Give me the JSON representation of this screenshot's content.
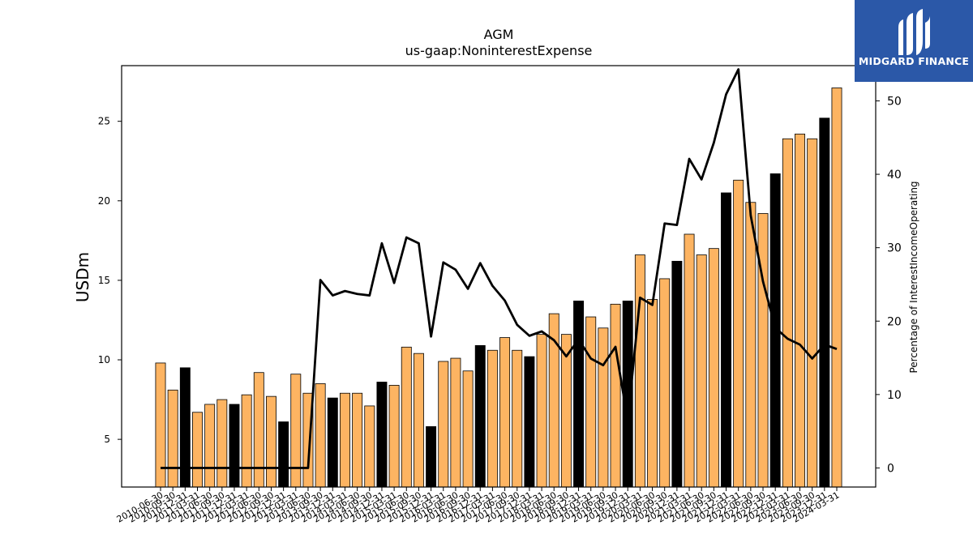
{
  "brand": {
    "name": "MIDGARD FINANCE",
    "bg_color": "#2b58a8"
  },
  "chart_data": {
    "type": "bar",
    "title": "AGM",
    "subtitle": "us-gaap:NoninterestExpense",
    "ylabel": "USDm",
    "y2label": "Percentage of InterestIncomeOperating",
    "ylim": [
      2.0,
      28.5
    ],
    "y2lim": [
      -2.6,
      54.8
    ],
    "yticks": [
      5,
      10,
      15,
      20,
      25
    ],
    "y2ticks": [
      0,
      10,
      20,
      30,
      40,
      50
    ],
    "bar_color": "#fdb462",
    "highlight_color": "#000000",
    "line_color": "#000000",
    "categories": [
      "2010-06-30",
      "2010-09-30",
      "2010-12-31",
      "2011-03-31",
      "2011-06-30",
      "2011-09-30",
      "2011-12-31",
      "2012-03-31",
      "2012-06-30",
      "2012-09-30",
      "2012-12-31",
      "2013-03-31",
      "2013-06-30",
      "2013-09-30",
      "2013-12-31",
      "2014-03-31",
      "2014-06-30",
      "2014-09-30",
      "2014-12-31",
      "2015-03-31",
      "2015-06-30",
      "2015-09-30",
      "2015-12-31",
      "2016-03-31",
      "2016-06-30",
      "2016-09-30",
      "2016-12-31",
      "2017-03-31",
      "2017-06-30",
      "2017-09-30",
      "2017-12-31",
      "2018-03-31",
      "2018-06-30",
      "2018-09-30",
      "2018-12-31",
      "2019-03-31",
      "2019-06-30",
      "2019-09-30",
      "2019-12-31",
      "2020-03-31",
      "2020-06-30",
      "2020-09-30",
      "2020-12-31",
      "2021-03-31",
      "2021-06-30",
      "2021-09-30",
      "2021-12-31",
      "2022-03-31",
      "2022-06-30",
      "2022-09-30",
      "2022-12-31",
      "2023-03-31",
      "2023-06-30",
      "2023-09-30",
      "2023-12-31",
      "2024-03-31"
    ],
    "highlight": [
      false,
      false,
      true,
      false,
      false,
      false,
      true,
      false,
      false,
      false,
      true,
      false,
      false,
      false,
      true,
      false,
      false,
      false,
      true,
      false,
      false,
      false,
      true,
      false,
      false,
      false,
      true,
      false,
      false,
      false,
      true,
      false,
      false,
      false,
      true,
      false,
      false,
      false,
      true,
      false,
      false,
      false,
      true,
      false,
      false,
      false,
      true,
      false,
      false,
      false,
      true,
      false,
      false,
      false,
      true,
      false
    ],
    "series": [
      {
        "name": "NoninterestExpense",
        "axis": "left",
        "values": [
          9.8,
          8.1,
          9.5,
          6.7,
          7.2,
          7.5,
          7.2,
          7.8,
          9.2,
          7.7,
          6.1,
          9.1,
          7.9,
          8.5,
          7.6,
          7.9,
          7.9,
          7.1,
          8.6,
          8.4,
          10.8,
          10.4,
          5.8,
          9.9,
          10.1,
          9.3,
          10.9,
          10.6,
          11.4,
          10.6,
          10.2,
          11.6,
          12.9,
          11.6,
          13.7,
          12.7,
          12.0,
          13.5,
          13.7,
          16.6,
          13.8,
          15.1,
          16.2,
          17.9,
          16.6,
          17.0,
          20.5,
          21.3,
          19.9,
          19.2,
          21.7,
          23.9,
          24.2,
          23.9,
          25.2,
          27.1
        ]
      },
      {
        "name": "Percentage of InterestIncomeOperating",
        "axis": "right",
        "values": [
          0,
          0,
          0,
          0,
          0,
          0,
          0,
          0,
          0,
          0,
          0,
          0,
          0,
          25.6,
          23.5,
          24.1,
          23.7,
          23.5,
          30.6,
          25.2,
          31.4,
          30.6,
          17.9,
          28.0,
          27.0,
          24.4,
          27.9,
          24.8,
          22.8,
          19.5,
          18.0,
          18.6,
          17.4,
          15.2,
          17.5,
          14.9,
          14.0,
          16.5,
          6.5,
          23.2,
          22.2,
          33.3,
          33.1,
          42.1,
          39.3,
          44.3,
          50.9,
          54.3,
          34.4,
          25.4,
          19.1,
          17.6,
          16.8,
          14.9,
          16.8,
          16.2
        ]
      }
    ]
  }
}
